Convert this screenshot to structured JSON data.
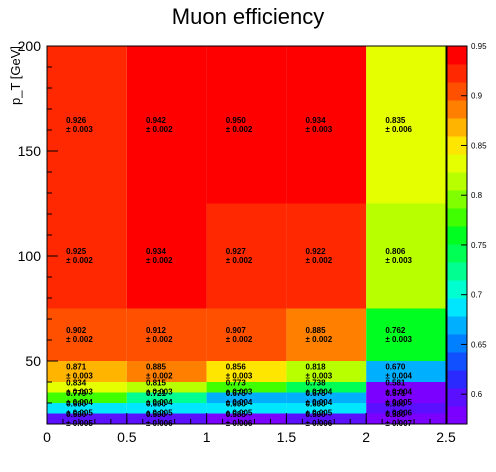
{
  "chart_data": {
    "type": "heatmap",
    "title": "Muon efficiency",
    "xlabel": "",
    "ylabel": "p_T [GeV]",
    "xlim": [
      0,
      2.5
    ],
    "ylim": [
      20,
      200
    ],
    "x_edges": [
      0,
      0.5,
      1,
      1.5,
      2,
      2.5
    ],
    "y_edges": [
      20,
      25,
      30,
      35,
      40,
      50,
      75,
      125,
      200
    ],
    "x_ticks": [
      "0",
      "0.5",
      "1",
      "1.5",
      "2",
      "2.5"
    ],
    "y_ticks": [
      "50",
      "100",
      "150",
      "200"
    ],
    "y_tick_values": [
      50,
      100,
      150,
      200
    ],
    "colorbar_ticks": [
      "0.6",
      "0.65",
      "0.7",
      "0.75",
      "0.8",
      "0.85",
      "0.9",
      "0.95"
    ],
    "colorbar_tick_values": [
      0.6,
      0.65,
      0.7,
      0.75,
      0.8,
      0.85,
      0.9,
      0.95
    ],
    "zlim": [
      0.57,
      0.95
    ],
    "rows": [
      {
        "ylow": 20,
        "yhigh": 25,
        "values": [
          0.59,
          0.59,
          0.585,
          0.59,
          0.58
        ],
        "value_labels": [
          "0.590",
          "0.590",
          "0.585",
          "0.590",
          "0.580"
        ],
        "error_labels": [
          "± 0.005",
          "± 0.006",
          "± 0.006",
          "± 0.006",
          "± 0.007"
        ]
      },
      {
        "ylow": 25,
        "yhigh": 30,
        "values": [
          0.69,
          0.69,
          0.69,
          0.69,
          0.59
        ],
        "value_labels": [
          "0.690",
          "0.690",
          "0.690",
          "0.690",
          "0.590"
        ],
        "error_labels": [
          "± 0.005",
          "± 0.005",
          "± 0.005",
          "± 0.005",
          "± 0.006"
        ]
      },
      {
        "ylow": 30,
        "yhigh": 35,
        "values": [
          0.779,
          0.721,
          0.675,
          0.675,
          0.571
        ],
        "value_labels": [
          "0.779",
          "0.721",
          "0.675",
          "0.675",
          "0.571"
        ],
        "error_labels": [
          "± 0.004",
          "± 0.004",
          "± 0.004",
          "± 0.004",
          "± 0.005"
        ]
      },
      {
        "ylow": 35,
        "yhigh": 40,
        "values": [
          0.834,
          0.815,
          0.773,
          0.738,
          0.581
        ],
        "value_labels": [
          "0.834",
          "0.815",
          "0.773",
          "0.738",
          "0.581"
        ],
        "error_labels": [
          "± 0.003",
          "± 0.003",
          "± 0.003",
          "± 0.004",
          "± 0.004"
        ]
      },
      {
        "ylow": 40,
        "yhigh": 50,
        "values": [
          0.871,
          0.885,
          0.856,
          0.818,
          0.67
        ],
        "value_labels": [
          "0.871",
          "0.885",
          "0.856",
          "0.818",
          "0.670"
        ],
        "error_labels": [
          "± 0.003",
          "± 0.002",
          "± 0.003",
          "± 0.003",
          "± 0.004"
        ]
      },
      {
        "ylow": 50,
        "yhigh": 75,
        "values": [
          0.902,
          0.912,
          0.907,
          0.885,
          0.762
        ],
        "value_labels": [
          "0.902",
          "0.912",
          "0.907",
          "0.885",
          "0.762"
        ],
        "error_labels": [
          "± 0.002",
          "± 0.002",
          "± 0.002",
          "± 0.002",
          "± 0.003"
        ]
      },
      {
        "ylow": 75,
        "yhigh": 125,
        "values": [
          0.925,
          0.934,
          0.927,
          0.922,
          0.806
        ],
        "value_labels": [
          "0.925",
          "0.934",
          "0.927",
          "0.922",
          "0.806"
        ],
        "error_labels": [
          "± 0.002",
          "± 0.002",
          "± 0.002",
          "± 0.002",
          "± 0.003"
        ]
      },
      {
        "ylow": 125,
        "yhigh": 200,
        "values": [
          0.926,
          0.942,
          0.95,
          0.934,
          0.835
        ],
        "value_labels": [
          "0.926",
          "0.942",
          "0.950",
          "0.934",
          "0.835"
        ],
        "error_labels": [
          "± 0.003",
          "± 0.002",
          "± 0.002",
          "± 0.003",
          "± 0.006"
        ]
      }
    ],
    "palette": [
      "#7b00ff",
      "#5a10ff",
      "#2a2aff",
      "#1050ff",
      "#0080ff",
      "#00b0ff",
      "#00e6ff",
      "#00ffd0",
      "#00ff90",
      "#00ff55",
      "#00ff20",
      "#40ff00",
      "#80ff00",
      "#b8ff00",
      "#e6ff00",
      "#ffe600",
      "#ffb400",
      "#ff8000",
      "#ff5000",
      "#ff2800",
      "#ff0000"
    ]
  }
}
